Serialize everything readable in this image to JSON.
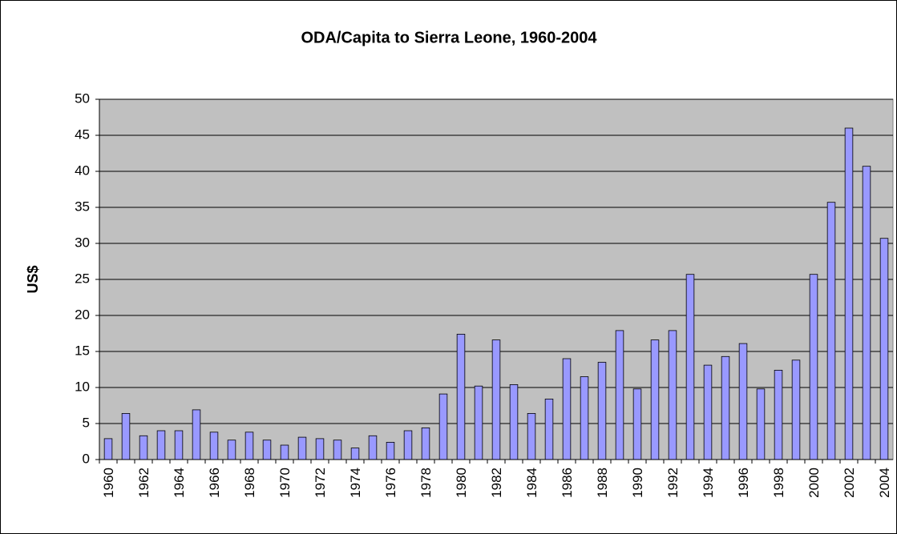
{
  "chart_data": {
    "type": "bar",
    "title": "ODA/Capita to Sierra Leone, 1960-2004",
    "ylabel": "US$",
    "categories": [
      "1960",
      null,
      "1962",
      null,
      "1964",
      null,
      "1966",
      null,
      "1968",
      null,
      "1970",
      null,
      "1972",
      null,
      "1974",
      null,
      "1976",
      null,
      "1978",
      null,
      "1980",
      null,
      "1982",
      null,
      "1984",
      null,
      "1986",
      null,
      "1988",
      null,
      "1990",
      null,
      "1992",
      null,
      "1994",
      null,
      "1996",
      null,
      "1998",
      null,
      "2000",
      null,
      "2002",
      null,
      "2004"
    ],
    "values": [
      2.9,
      6.4,
      3.3,
      4.0,
      4.0,
      6.9,
      3.8,
      2.7,
      3.8,
      2.7,
      2.0,
      3.1,
      2.9,
      2.7,
      1.6,
      3.3,
      2.4,
      4.0,
      4.4,
      9.1,
      17.4,
      10.2,
      16.6,
      10.4,
      6.4,
      8.4,
      14.0,
      11.5,
      13.5,
      17.9,
      9.8,
      16.6,
      17.9,
      25.7,
      13.1,
      14.3,
      16.1,
      9.8,
      12.4,
      13.8,
      25.7,
      35.7,
      46.0,
      40.7,
      30.7
    ],
    "color": "#9999ff",
    "ylim": [
      0,
      50
    ],
    "yticks": [
      0,
      5,
      10,
      15,
      20,
      25,
      30,
      35,
      40,
      45,
      50
    ],
    "grid": true
  }
}
